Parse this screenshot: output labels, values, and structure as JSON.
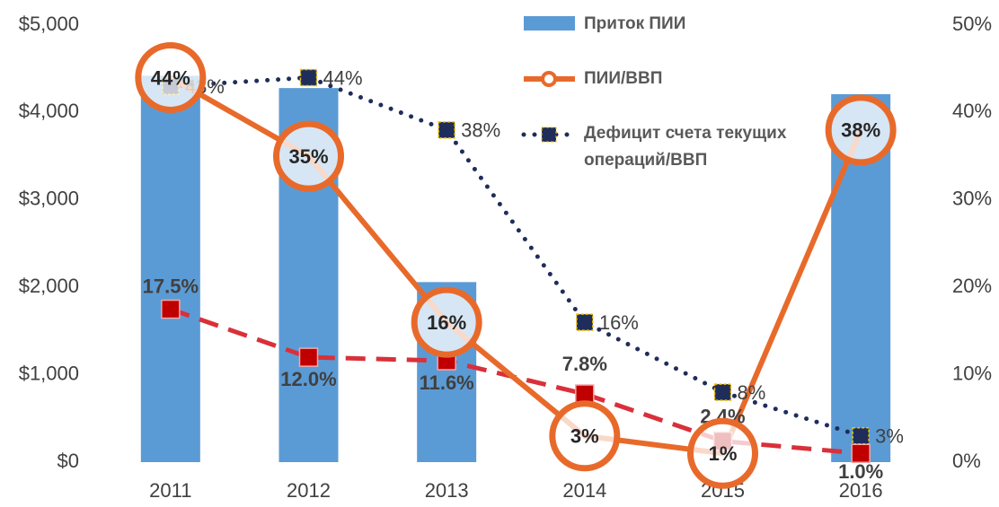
{
  "chart_data": {
    "type": "bar_line",
    "categories": [
      "2011",
      "2012",
      "2013",
      "2014",
      "2015",
      "2016"
    ],
    "ylim": [
      0,
      5000
    ],
    "yticks": [
      {
        "value": 0,
        "label": "$0"
      },
      {
        "value": 1000,
        "label": "$1,000"
      },
      {
        "value": 2000,
        "label": "$2,000"
      },
      {
        "value": 3000,
        "label": "$3,000"
      },
      {
        "value": 4000,
        "label": "$4,000"
      },
      {
        "value": 5000,
        "label": "$5,000"
      }
    ],
    "y2lim": [
      0,
      50
    ],
    "y2ticks": [
      {
        "value": 0,
        "label": "0%"
      },
      {
        "value": 10,
        "label": "10%"
      },
      {
        "value": 20,
        "label": "20%"
      },
      {
        "value": 30,
        "label": "30%"
      },
      {
        "value": 40,
        "label": "40%"
      },
      {
        "value": 50,
        "label": "50%"
      }
    ],
    "series": [
      {
        "name": "Приток ПИИ",
        "type": "bar",
        "color": "#5b9bd5",
        "values": [
          4420,
          4280,
          2060,
          0,
          0,
          4210
        ]
      },
      {
        "name": "ПИИ/ВВП",
        "type": "line",
        "axis": "y2",
        "color": "#e86a2b",
        "values": [
          44,
          35,
          16,
          3,
          1,
          38
        ],
        "value_labels": [
          "44%",
          "35%",
          "16%",
          "3%",
          "1%",
          "38%"
        ]
      },
      {
        "name": "Дефицит счета текущих операций/ВВП",
        "type": "line",
        "axis": "y2",
        "color": "#1f2d5a",
        "values": [
          43,
          44,
          38,
          16,
          8,
          3
        ],
        "value_labels": [
          "43%",
          "44%",
          "38%",
          "16%",
          "8%",
          "3%"
        ]
      },
      {
        "type": "line",
        "axis": "y2",
        "color": "#d9303a",
        "values": [
          17.5,
          12.0,
          11.6,
          7.8,
          2.4,
          1.0
        ],
        "value_labels": [
          "17.5%",
          "12.0%",
          "11.6%",
          "7.8%",
          "2.4%",
          "1.0%"
        ]
      }
    ]
  }
}
